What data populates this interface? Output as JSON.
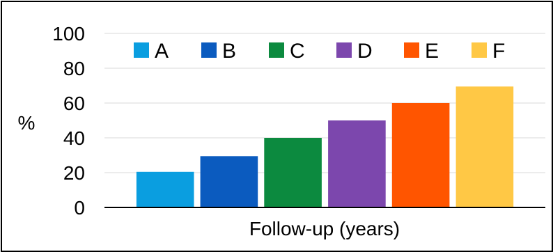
{
  "chart_data": {
    "type": "bar",
    "categories": [
      "A",
      "B",
      "C",
      "D",
      "E",
      "F"
    ],
    "values": [
      20.5,
      29.5,
      40,
      50,
      60,
      69.5
    ],
    "colors": [
      "#0a9ee0",
      "#0b5bbf",
      "#0c8a3f",
      "#7c47ad",
      "#ff5500",
      "#ffc845"
    ],
    "xlabel": "Follow-up (years)",
    "ylabel": "%",
    "ylim": [
      0,
      100
    ],
    "yticks": [
      0,
      20,
      40,
      60,
      80,
      100
    ],
    "grid": true,
    "legend": {
      "position": "top",
      "entries": [
        "A",
        "B",
        "C",
        "D",
        "E",
        "F"
      ]
    }
  }
}
